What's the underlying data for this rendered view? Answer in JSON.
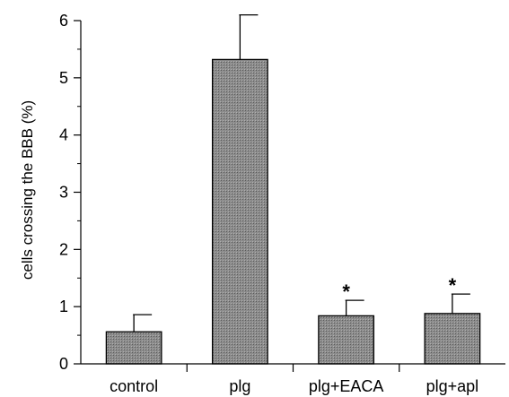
{
  "chart_data": {
    "type": "bar",
    "title": "",
    "xlabel": "",
    "ylabel": "cells crossing the BBB (%)",
    "ylim": [
      0,
      6
    ],
    "yticks": [
      "0",
      "1",
      "2",
      "3",
      "4",
      "5",
      "6"
    ],
    "grid": false,
    "legend": "none",
    "categories": [
      "control",
      "plg",
      "plg+EACA",
      "plg+apl"
    ],
    "values": [
      0.56,
      5.32,
      0.84,
      0.88
    ],
    "error_upper": [
      0.3,
      0.78,
      0.27,
      0.34
    ],
    "annotations": [
      "",
      "",
      "*",
      "*"
    ],
    "bar_color": "#8c8c8c"
  }
}
